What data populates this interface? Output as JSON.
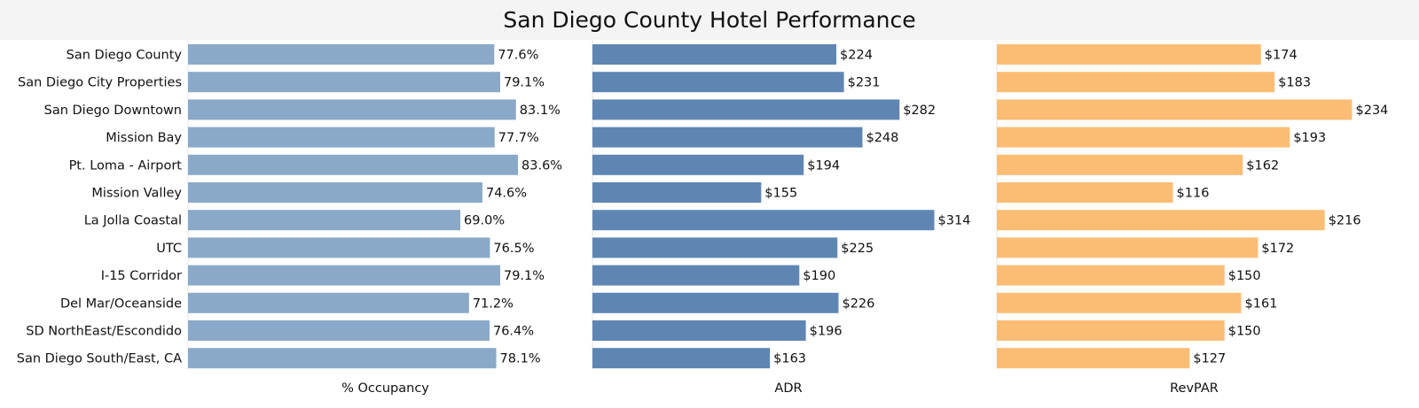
{
  "title": "San Diego County Hotel Performance",
  "chart_data": {
    "type": "bar",
    "orientation": "horizontal",
    "categories": [
      "San Diego County",
      "San Diego City Properties",
      "San Diego Downtown",
      "Mission Bay",
      "Pt. Loma - Airport",
      "Mission Valley",
      "La Jolla Coastal",
      "UTC",
      "I-15 Corridor",
      "Del Mar/Oceanside",
      "SD NorthEast/Escondido",
      "San Diego South/East, CA"
    ],
    "series": [
      {
        "name": "% Occupancy",
        "values": [
          77.6,
          79.1,
          83.1,
          77.7,
          83.6,
          74.6,
          69.0,
          76.5,
          79.1,
          71.2,
          76.4,
          78.1
        ],
        "labels": [
          "77.6%",
          "79.1%",
          "83.1%",
          "77.7%",
          "83.6%",
          "74.6%",
          "69.0%",
          "76.5%",
          "79.1%",
          "71.2%",
          "76.4%",
          "78.1%"
        ],
        "color": "#8aa9c9",
        "xlim": [
          0,
          100
        ]
      },
      {
        "name": "ADR",
        "values": [
          224,
          231,
          282,
          248,
          194,
          155,
          314,
          225,
          190,
          226,
          196,
          163
        ],
        "labels": [
          "$224",
          "$231",
          "$282",
          "$248",
          "$194",
          "$155",
          "$314",
          "$225",
          "$190",
          "$226",
          "$196",
          "$163"
        ],
        "color": "#5f86b3",
        "xlim": [
          0,
          360
        ]
      },
      {
        "name": "RevPAR",
        "values": [
          174,
          183,
          234,
          193,
          162,
          116,
          216,
          172,
          150,
          161,
          150,
          127
        ],
        "labels": [
          "$174",
          "$183",
          "$234",
          "$193",
          "$162",
          "$116",
          "$216",
          "$172",
          "$150",
          "$161",
          "$150",
          "$127"
        ],
        "color": "#fbbd74",
        "xlim": [
          0,
          260
        ]
      }
    ],
    "grid": false,
    "legend": "none"
  }
}
